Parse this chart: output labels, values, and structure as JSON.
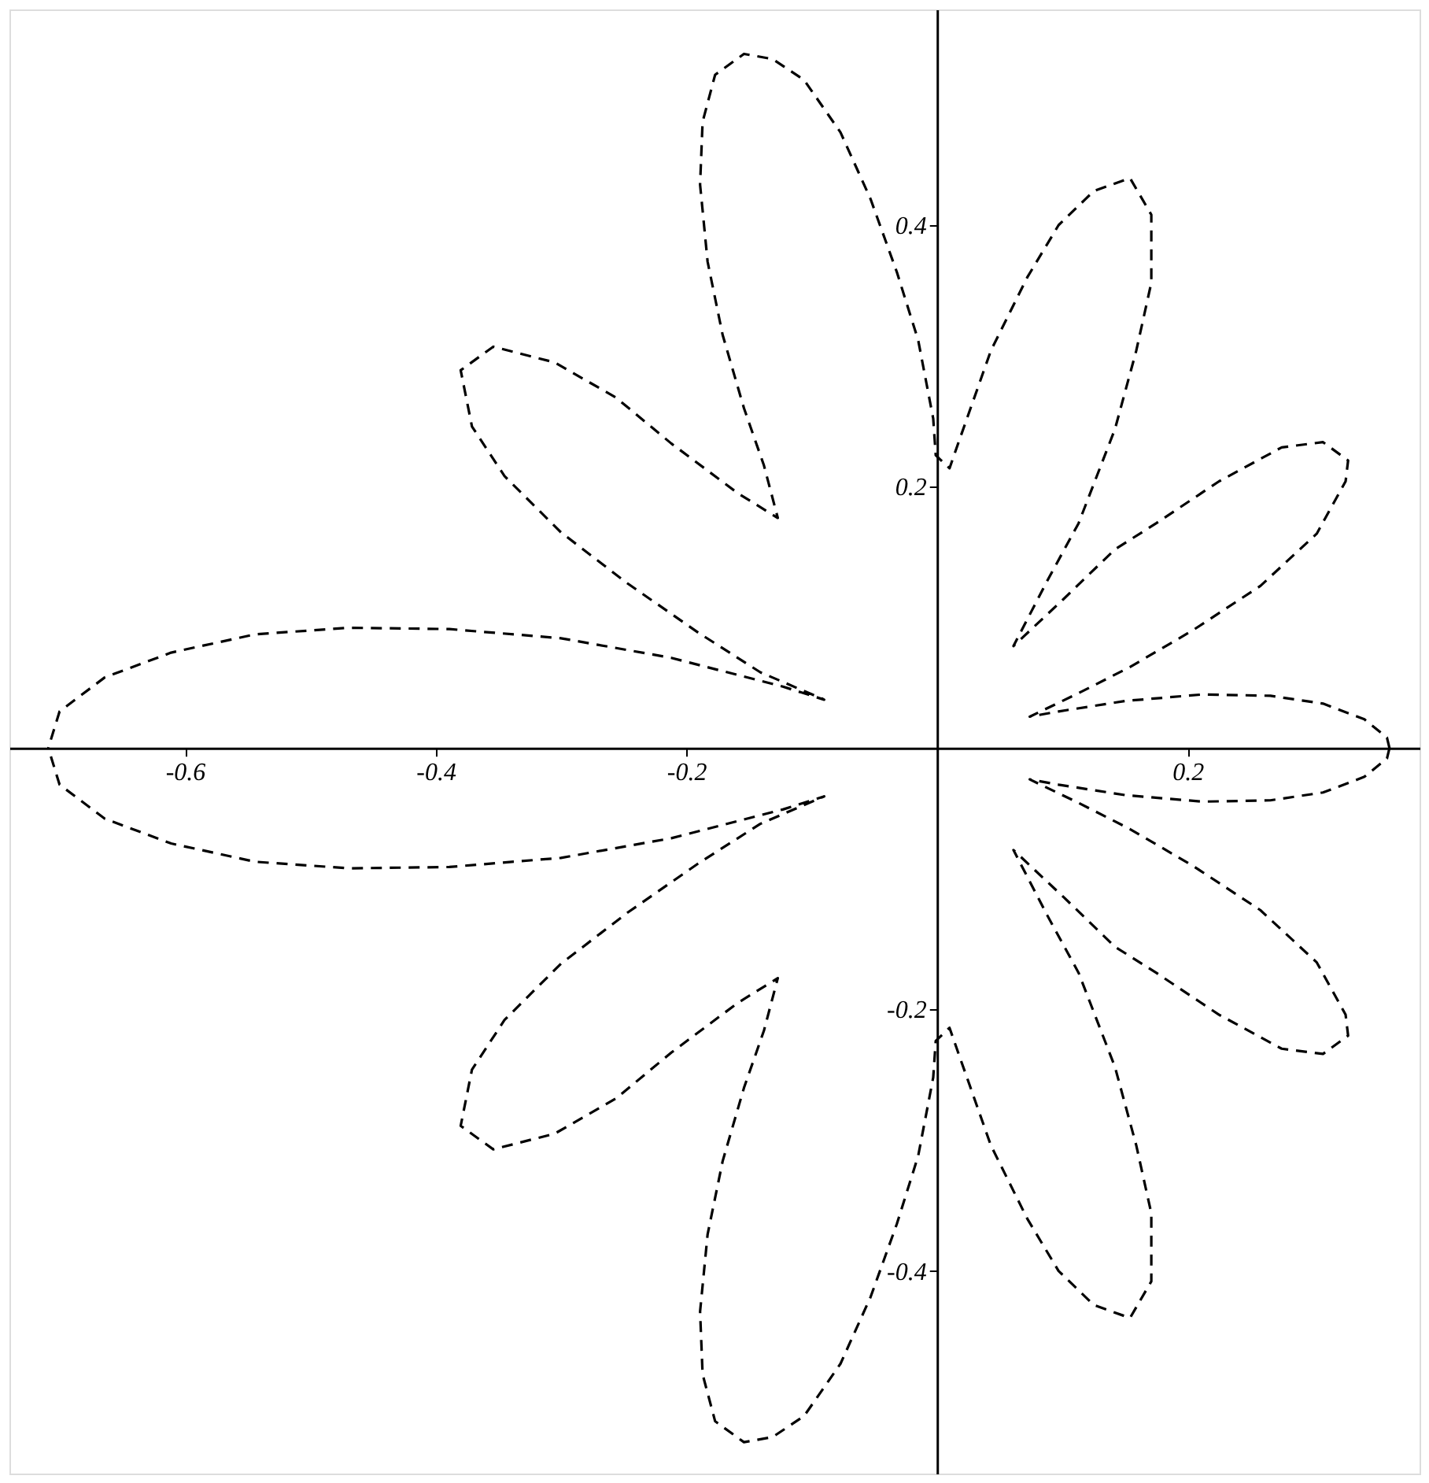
{
  "chart_data": {
    "type": "line",
    "line_style": "dashed",
    "xlim": [
      -0.74,
      0.385
    ],
    "ylim": [
      -0.555,
      0.565
    ],
    "xticks": [
      -0.6,
      -0.4,
      -0.2,
      0.2
    ],
    "yticks": [
      -0.4,
      -0.2,
      0.2,
      0.4
    ],
    "series": [
      {
        "color": "#000000",
        "x": [
          0.361,
          0.359,
          0.341,
          0.308,
          0.266,
          0.212,
          0.15,
          0.097,
          0.074,
          0.113,
          0.154,
          0.204,
          0.258,
          0.303,
          0.326,
          0.328,
          0.308,
          0.275,
          0.225,
          0.175,
          0.142,
          0.101,
          0.061,
          0.088,
          0.113,
          0.142,
          0.159,
          0.171,
          0.171,
          0.154,
          0.125,
          0.097,
          0.072,
          0.043,
          0.018,
          0.01,
          -0.001,
          -0.003,
          -0.015,
          -0.032,
          -0.053,
          -0.077,
          -0.106,
          -0.131,
          -0.154,
          -0.177,
          -0.187,
          -0.189,
          -0.183,
          -0.171,
          -0.154,
          -0.138,
          -0.127,
          -0.159,
          -0.212,
          -0.256,
          -0.305,
          -0.354,
          -0.38,
          -0.371,
          -0.345,
          -0.3,
          -0.247,
          -0.19,
          -0.141,
          -0.09,
          -0.123,
          -0.212,
          -0.3,
          -0.389,
          -0.469,
          -0.544,
          -0.611,
          -0.664,
          -0.7,
          -0.709
        ],
        "values": [
          0,
          0.008,
          0.022,
          0.034,
          0.04,
          0.041,
          0.036,
          0.028,
          0.024,
          0.042,
          0.062,
          0.09,
          0.124,
          0.164,
          0.204,
          0.22,
          0.234,
          0.23,
          0.204,
          0.172,
          0.152,
          0.114,
          0.078,
          0.128,
          0.172,
          0.244,
          0.304,
          0.356,
          0.408,
          0.436,
          0.426,
          0.4,
          0.36,
          0.304,
          0.236,
          0.214,
          0.224,
          0.252,
          0.312,
          0.364,
          0.42,
          0.471,
          0.511,
          0.527,
          0.531,
          0.515,
          0.479,
          0.431,
          0.372,
          0.316,
          0.26,
          0.216,
          0.176,
          0.195,
          0.233,
          0.268,
          0.295,
          0.307,
          0.289,
          0.246,
          0.208,
          0.165,
          0.126,
          0.088,
          0.058,
          0.037,
          0.047,
          0.069,
          0.084,
          0.091,
          0.092,
          0.087,
          0.073,
          0.054,
          0.028,
          0
        ]
      },
      {
        "color": "#000000",
        "x": [
          0.361,
          0.359,
          0.341,
          0.308,
          0.266,
          0.212,
          0.15,
          0.097,
          0.074,
          0.113,
          0.154,
          0.204,
          0.258,
          0.303,
          0.326,
          0.328,
          0.308,
          0.275,
          0.225,
          0.175,
          0.142,
          0.101,
          0.061,
          0.088,
          0.113,
          0.142,
          0.159,
          0.171,
          0.171,
          0.154,
          0.125,
          0.097,
          0.072,
          0.043,
          0.018,
          0.01,
          -0.001,
          -0.003,
          -0.015,
          -0.032,
          -0.053,
          -0.077,
          -0.106,
          -0.131,
          -0.154,
          -0.177,
          -0.187,
          -0.189,
          -0.183,
          -0.171,
          -0.154,
          -0.138,
          -0.127,
          -0.159,
          -0.212,
          -0.256,
          -0.305,
          -0.354,
          -0.38,
          -0.371,
          -0.345,
          -0.3,
          -0.247,
          -0.19,
          -0.141,
          -0.09,
          -0.123,
          -0.212,
          -0.3,
          -0.389,
          -0.469,
          -0.544,
          -0.611,
          -0.664,
          -0.7,
          -0.709
        ],
        "values": [
          0,
          -0.008,
          -0.022,
          -0.034,
          -0.04,
          -0.041,
          -0.036,
          -0.028,
          -0.024,
          -0.042,
          -0.062,
          -0.09,
          -0.124,
          -0.164,
          -0.204,
          -0.22,
          -0.234,
          -0.23,
          -0.204,
          -0.172,
          -0.152,
          -0.114,
          -0.078,
          -0.128,
          -0.172,
          -0.244,
          -0.304,
          -0.356,
          -0.408,
          -0.436,
          -0.426,
          -0.4,
          -0.36,
          -0.304,
          -0.236,
          -0.214,
          -0.224,
          -0.252,
          -0.312,
          -0.364,
          -0.42,
          -0.471,
          -0.511,
          -0.527,
          -0.531,
          -0.515,
          -0.479,
          -0.431,
          -0.372,
          -0.316,
          -0.26,
          -0.216,
          -0.176,
          -0.195,
          -0.233,
          -0.268,
          -0.295,
          -0.307,
          -0.289,
          -0.246,
          -0.208,
          -0.165,
          -0.126,
          -0.088,
          -0.058,
          -0.037,
          -0.047,
          -0.069,
          -0.084,
          -0.091,
          -0.092,
          -0.087,
          -0.073,
          -0.054,
          -0.028,
          0
        ]
      }
    ]
  }
}
